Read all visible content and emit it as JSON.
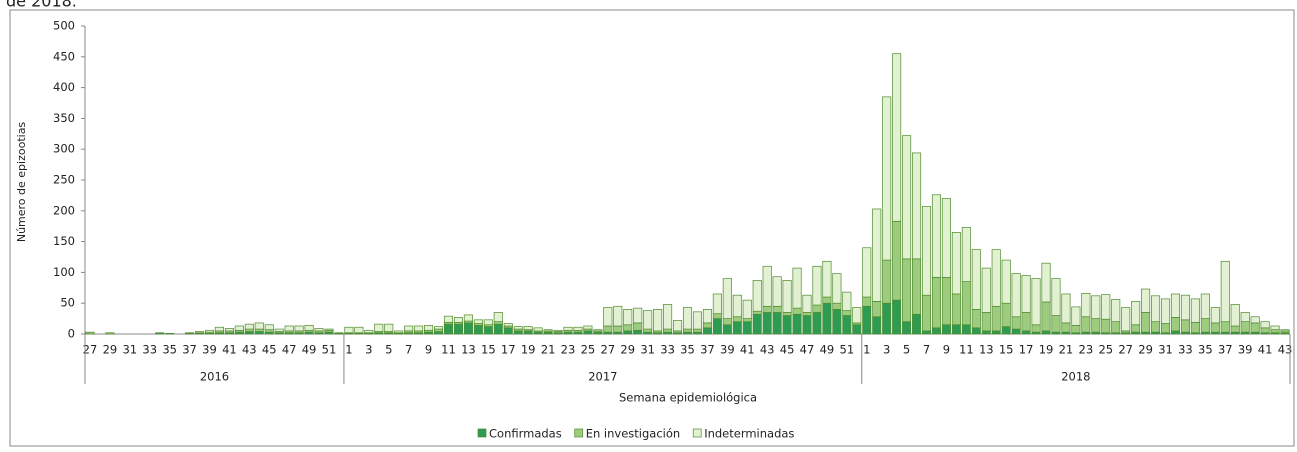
{
  "chart_data": {
    "type": "bar",
    "stacked": true,
    "title": "de 2018.",
    "ylabel": "Número de epizootias",
    "xlabel": "Semana epidemiológica",
    "groups": [
      {
        "name": "2016",
        "categories": [
          "27",
          null,
          "29",
          null,
          "31",
          null,
          "33",
          null,
          "35",
          null,
          "37",
          null,
          "39",
          null,
          "41",
          null,
          "43",
          null,
          "45",
          null,
          "47",
          null,
          "49",
          null,
          "51",
          null
        ]
      },
      {
        "name": "2017",
        "categories": [
          "1",
          null,
          "3",
          null,
          "5",
          null,
          "7",
          null,
          "9",
          null,
          "11",
          null,
          "13",
          null,
          "15",
          null,
          "17",
          null,
          "19",
          null,
          "21",
          null,
          "23",
          null,
          "25",
          null,
          "27",
          null,
          "29",
          null,
          "31",
          null,
          "33",
          null,
          "35",
          null,
          "37",
          null,
          "39",
          null,
          "41",
          null,
          "43",
          null,
          "45",
          null,
          "47",
          null,
          "49",
          null,
          "51",
          null
        ]
      },
      {
        "name": "2018",
        "categories": [
          "1",
          null,
          "3",
          null,
          "5",
          null,
          "7",
          null,
          "9",
          null,
          "11",
          null,
          "13",
          null,
          "15",
          null,
          "17",
          null,
          "19",
          null,
          "21",
          null,
          "23",
          null,
          "25",
          null,
          "27",
          null,
          "29",
          null,
          "31",
          null,
          "33",
          null,
          "35",
          null,
          "37",
          null,
          "39",
          null,
          "41",
          null,
          "43"
        ]
      }
    ],
    "series": [
      {
        "name": "Confirmadas",
        "color": "#2e9b52",
        "values": [
          0,
          0,
          0,
          0,
          0,
          0,
          0,
          2,
          1,
          0,
          0,
          1,
          1,
          2,
          2,
          3,
          4,
          4,
          3,
          2,
          2,
          2,
          3,
          2,
          3,
          0,
          1,
          1,
          1,
          2,
          2,
          1,
          2,
          2,
          3,
          4,
          16,
          16,
          18,
          14,
          12,
          16,
          10,
          5,
          5,
          3,
          3,
          2,
          3,
          3,
          5,
          3,
          3,
          3,
          5,
          6,
          3,
          2,
          3,
          2,
          3,
          3,
          10,
          25,
          15,
          20,
          20,
          32,
          35,
          35,
          30,
          32,
          30,
          35,
          50,
          40,
          30,
          15,
          45,
          28,
          50,
          55,
          20,
          32,
          5,
          10,
          15,
          15,
          15,
          10,
          5,
          5,
          12,
          8,
          5,
          3,
          5,
          3,
          3,
          2,
          3,
          3,
          2,
          2,
          2,
          3,
          3,
          3,
          2,
          5,
          3,
          2,
          3,
          3,
          3,
          3,
          3,
          3,
          2,
          2,
          2
        ]
      },
      {
        "name": "En investigación",
        "color": "#9dcc7f",
        "values": [
          3,
          0,
          2,
          0,
          0,
          0,
          0,
          0,
          0,
          0,
          1,
          1,
          2,
          3,
          3,
          3,
          4,
          4,
          4,
          2,
          3,
          3,
          3,
          3,
          3,
          1,
          1,
          1,
          1,
          2,
          2,
          1,
          3,
          3,
          3,
          4,
          3,
          3,
          3,
          3,
          3,
          4,
          3,
          3,
          2,
          2,
          2,
          2,
          3,
          3,
          3,
          2,
          10,
          10,
          10,
          12,
          5,
          3,
          5,
          3,
          5,
          5,
          8,
          8,
          10,
          8,
          5,
          5,
          10,
          10,
          5,
          10,
          5,
          12,
          10,
          10,
          8,
          3,
          15,
          25,
          70,
          128,
          102,
          90,
          58,
          82,
          77,
          50,
          70,
          30,
          30,
          40,
          38,
          20,
          30,
          12,
          47,
          27,
          15,
          12,
          25,
          22,
          22,
          18,
          3,
          12,
          32,
          17,
          15,
          22,
          20,
          17,
          22,
          15,
          17,
          10,
          17,
          15,
          8,
          5,
          3
        ]
      },
      {
        "name": "Indeterminadas",
        "color": "#e3f1d3",
        "values": [
          0,
          0,
          0,
          0,
          0,
          0,
          0,
          0,
          0,
          0,
          1,
          2,
          3,
          6,
          4,
          7,
          8,
          10,
          8,
          4,
          8,
          8,
          8,
          4,
          2,
          1,
          9,
          9,
          4,
          12,
          12,
          3,
          8,
          8,
          8,
          4,
          10,
          8,
          10,
          6,
          8,
          15,
          4,
          4,
          5,
          5,
          2,
          2,
          5,
          5,
          5,
          2,
          30,
          32,
          25,
          24,
          30,
          35,
          40,
          17,
          35,
          28,
          22,
          32,
          65,
          35,
          30,
          50,
          65,
          48,
          52,
          65,
          28,
          63,
          58,
          48,
          30,
          25,
          80,
          150,
          265,
          272,
          200,
          172,
          144,
          134,
          128,
          100,
          88,
          97,
          72,
          92,
          70,
          70,
          60,
          75,
          63,
          60,
          47,
          30,
          38,
          37,
          40,
          36,
          38,
          38,
          38,
          42,
          40,
          38,
          40,
          38,
          40,
          25,
          98,
          35,
          15,
          10,
          10,
          6,
          2
        ]
      }
    ],
    "ylim": [
      0,
      500
    ],
    "yticks": [
      0,
      50,
      100,
      150,
      200,
      250,
      300,
      350,
      400,
      450,
      500
    ],
    "legend": "bottom"
  }
}
